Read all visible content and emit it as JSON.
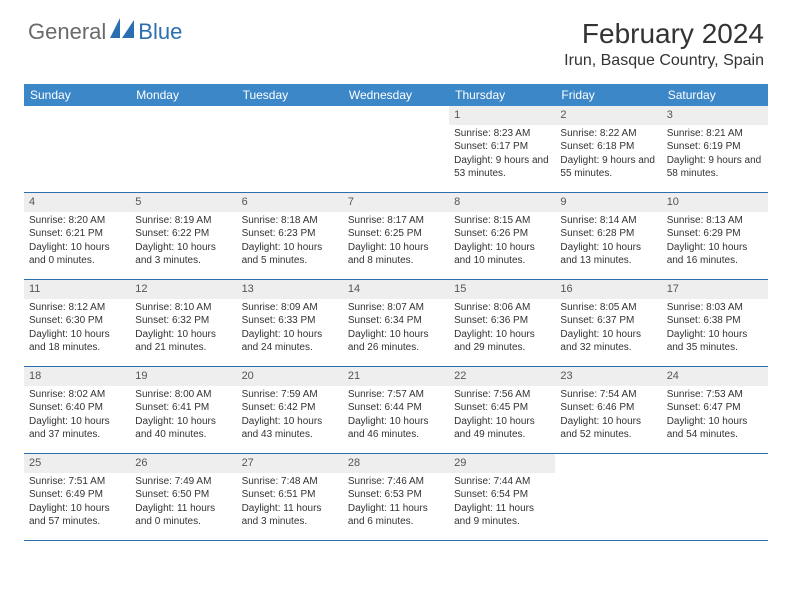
{
  "logo": {
    "text1": "General",
    "text2": "Blue"
  },
  "title": "February 2024",
  "location": "Irun, Basque Country, Spain",
  "colors": {
    "header_bg": "#3b87c8",
    "border": "#2c6fb0",
    "daynum_bg": "#eeeeee",
    "text": "#333333",
    "logo_gray": "#6a6a6a",
    "logo_blue": "#2c6fb0"
  },
  "weekdays": [
    "Sunday",
    "Monday",
    "Tuesday",
    "Wednesday",
    "Thursday",
    "Friday",
    "Saturday"
  ],
  "weeks": [
    [
      null,
      null,
      null,
      null,
      {
        "d": "1",
        "sr": "8:23 AM",
        "ss": "6:17 PM",
        "dl": "9 hours and 53 minutes."
      },
      {
        "d": "2",
        "sr": "8:22 AM",
        "ss": "6:18 PM",
        "dl": "9 hours and 55 minutes."
      },
      {
        "d": "3",
        "sr": "8:21 AM",
        "ss": "6:19 PM",
        "dl": "9 hours and 58 minutes."
      }
    ],
    [
      {
        "d": "4",
        "sr": "8:20 AM",
        "ss": "6:21 PM",
        "dl": "10 hours and 0 minutes."
      },
      {
        "d": "5",
        "sr": "8:19 AM",
        "ss": "6:22 PM",
        "dl": "10 hours and 3 minutes."
      },
      {
        "d": "6",
        "sr": "8:18 AM",
        "ss": "6:23 PM",
        "dl": "10 hours and 5 minutes."
      },
      {
        "d": "7",
        "sr": "8:17 AM",
        "ss": "6:25 PM",
        "dl": "10 hours and 8 minutes."
      },
      {
        "d": "8",
        "sr": "8:15 AM",
        "ss": "6:26 PM",
        "dl": "10 hours and 10 minutes."
      },
      {
        "d": "9",
        "sr": "8:14 AM",
        "ss": "6:28 PM",
        "dl": "10 hours and 13 minutes."
      },
      {
        "d": "10",
        "sr": "8:13 AM",
        "ss": "6:29 PM",
        "dl": "10 hours and 16 minutes."
      }
    ],
    [
      {
        "d": "11",
        "sr": "8:12 AM",
        "ss": "6:30 PM",
        "dl": "10 hours and 18 minutes."
      },
      {
        "d": "12",
        "sr": "8:10 AM",
        "ss": "6:32 PM",
        "dl": "10 hours and 21 minutes."
      },
      {
        "d": "13",
        "sr": "8:09 AM",
        "ss": "6:33 PM",
        "dl": "10 hours and 24 minutes."
      },
      {
        "d": "14",
        "sr": "8:07 AM",
        "ss": "6:34 PM",
        "dl": "10 hours and 26 minutes."
      },
      {
        "d": "15",
        "sr": "8:06 AM",
        "ss": "6:36 PM",
        "dl": "10 hours and 29 minutes."
      },
      {
        "d": "16",
        "sr": "8:05 AM",
        "ss": "6:37 PM",
        "dl": "10 hours and 32 minutes."
      },
      {
        "d": "17",
        "sr": "8:03 AM",
        "ss": "6:38 PM",
        "dl": "10 hours and 35 minutes."
      }
    ],
    [
      {
        "d": "18",
        "sr": "8:02 AM",
        "ss": "6:40 PM",
        "dl": "10 hours and 37 minutes."
      },
      {
        "d": "19",
        "sr": "8:00 AM",
        "ss": "6:41 PM",
        "dl": "10 hours and 40 minutes."
      },
      {
        "d": "20",
        "sr": "7:59 AM",
        "ss": "6:42 PM",
        "dl": "10 hours and 43 minutes."
      },
      {
        "d": "21",
        "sr": "7:57 AM",
        "ss": "6:44 PM",
        "dl": "10 hours and 46 minutes."
      },
      {
        "d": "22",
        "sr": "7:56 AM",
        "ss": "6:45 PM",
        "dl": "10 hours and 49 minutes."
      },
      {
        "d": "23",
        "sr": "7:54 AM",
        "ss": "6:46 PM",
        "dl": "10 hours and 52 minutes."
      },
      {
        "d": "24",
        "sr": "7:53 AM",
        "ss": "6:47 PM",
        "dl": "10 hours and 54 minutes."
      }
    ],
    [
      {
        "d": "25",
        "sr": "7:51 AM",
        "ss": "6:49 PM",
        "dl": "10 hours and 57 minutes."
      },
      {
        "d": "26",
        "sr": "7:49 AM",
        "ss": "6:50 PM",
        "dl": "11 hours and 0 minutes."
      },
      {
        "d": "27",
        "sr": "7:48 AM",
        "ss": "6:51 PM",
        "dl": "11 hours and 3 minutes."
      },
      {
        "d": "28",
        "sr": "7:46 AM",
        "ss": "6:53 PM",
        "dl": "11 hours and 6 minutes."
      },
      {
        "d": "29",
        "sr": "7:44 AM",
        "ss": "6:54 PM",
        "dl": "11 hours and 9 minutes."
      },
      null,
      null
    ]
  ],
  "labels": {
    "sunrise": "Sunrise: ",
    "sunset": "Sunset: ",
    "daylight": "Daylight: "
  }
}
